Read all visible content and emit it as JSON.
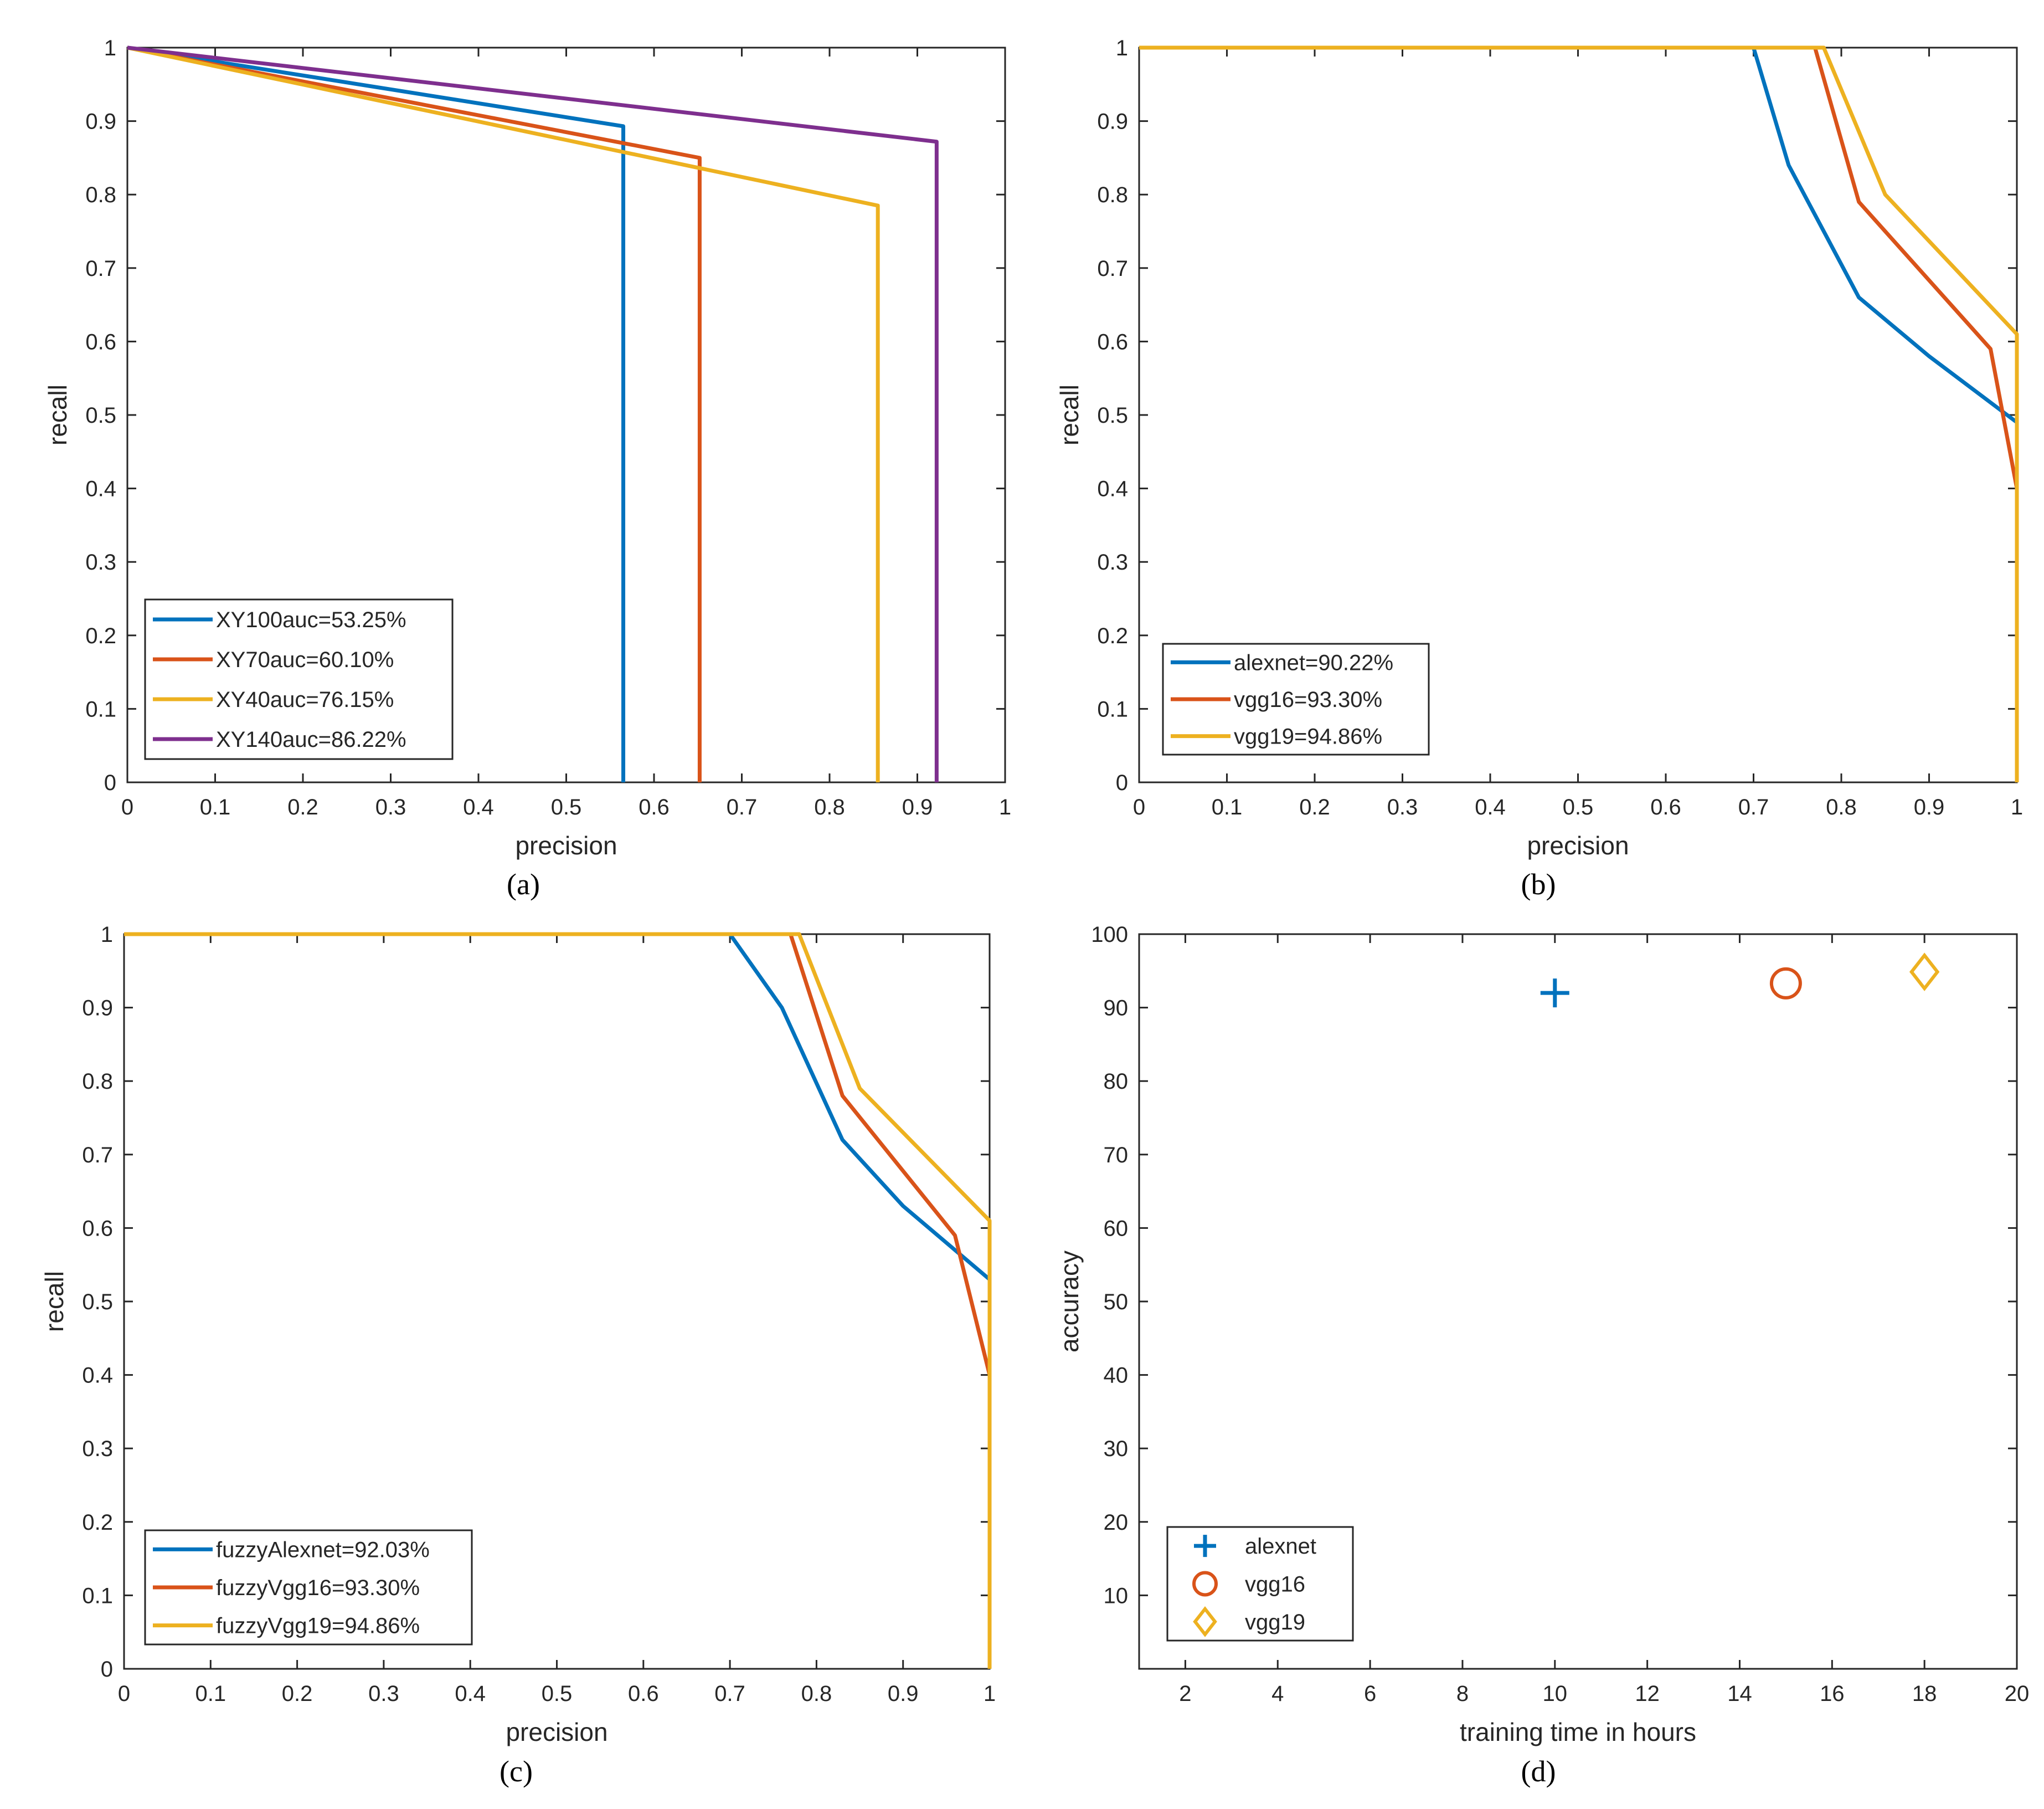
{
  "chart_data": [
    {
      "type": "line",
      "caption": "(a)",
      "xlabel": "precision",
      "ylabel": "recall",
      "xlim": [
        0,
        1
      ],
      "ylim": [
        0,
        1
      ],
      "xticks": [
        0,
        0.1,
        0.2,
        0.3,
        0.4,
        0.5,
        0.6,
        0.7,
        0.8,
        0.9,
        1
      ],
      "yticks": [
        0,
        0.1,
        0.2,
        0.3,
        0.4,
        0.5,
        0.6,
        0.7,
        0.8,
        0.9,
        1
      ],
      "xtick_labels": [
        "0",
        "0.1",
        "0.2",
        "0.3",
        "0.4",
        "0.5",
        "0.6",
        "0.7",
        "0.8",
        "0.9",
        "1"
      ],
      "ytick_labels": [
        "0",
        "0.1",
        "0.2",
        "0.3",
        "0.4",
        "0.5",
        "0.6",
        "0.7",
        "0.8",
        "0.9",
        "1"
      ],
      "legend_position": "bottom-left",
      "series": [
        {
          "name": "XY100auc=53.25%",
          "color": "#0072BD",
          "x": [
            0,
            0.565,
            0.565
          ],
          "y": [
            1,
            0.893,
            0
          ]
        },
        {
          "name": "XY70auc=60.10%",
          "color": "#D95319",
          "x": [
            0,
            0.652,
            0.652
          ],
          "y": [
            1,
            0.85,
            0
          ]
        },
        {
          "name": "XY40auc=76.15%",
          "color": "#EDB120",
          "x": [
            0,
            0.855,
            0.855
          ],
          "y": [
            1,
            0.785,
            0
          ]
        },
        {
          "name": "XY140auc=86.22%",
          "color": "#7E2F8E",
          "x": [
            0,
            0.922,
            0.922
          ],
          "y": [
            1,
            0.872,
            0
          ]
        }
      ]
    },
    {
      "type": "line",
      "caption": "(b)",
      "xlabel": "precision",
      "ylabel": "recall",
      "xlim": [
        0,
        1
      ],
      "ylim": [
        0,
        1
      ],
      "xticks": [
        0,
        0.1,
        0.2,
        0.3,
        0.4,
        0.5,
        0.6,
        0.7,
        0.8,
        0.9,
        1
      ],
      "yticks": [
        0,
        0.1,
        0.2,
        0.3,
        0.4,
        0.5,
        0.6,
        0.7,
        0.8,
        0.9,
        1
      ],
      "xtick_labels": [
        "0",
        "0.1",
        "0.2",
        "0.3",
        "0.4",
        "0.5",
        "0.6",
        "0.7",
        "0.8",
        "0.9",
        "1"
      ],
      "ytick_labels": [
        "0",
        "0.1",
        "0.2",
        "0.3",
        "0.4",
        "0.5",
        "0.6",
        "0.7",
        "0.8",
        "0.9",
        "1"
      ],
      "legend_position": "bottom-left",
      "series": [
        {
          "name": "alexnet=90.22%",
          "color": "#0072BD",
          "x": [
            0,
            0.7,
            0.74,
            0.82,
            0.9,
            1,
            1
          ],
          "y": [
            1,
            1,
            0.84,
            0.66,
            0.58,
            0.49,
            0
          ]
        },
        {
          "name": "vgg16=93.30%",
          "color": "#D95319",
          "x": [
            0,
            0.77,
            0.82,
            0.97,
            1,
            1
          ],
          "y": [
            1,
            1,
            0.79,
            0.59,
            0.4,
            0
          ]
        },
        {
          "name": "vgg19=94.86%",
          "color": "#EDB120",
          "x": [
            0,
            0.78,
            0.85,
            1,
            1
          ],
          "y": [
            1,
            1,
            0.8,
            0.61,
            0
          ]
        }
      ]
    },
    {
      "type": "line",
      "caption": "(c)",
      "xlabel": "precision",
      "ylabel": "recall",
      "xlim": [
        0,
        1
      ],
      "ylim": [
        0,
        1
      ],
      "xticks": [
        0,
        0.1,
        0.2,
        0.3,
        0.4,
        0.5,
        0.6,
        0.7,
        0.8,
        0.9,
        1
      ],
      "yticks": [
        0,
        0.1,
        0.2,
        0.3,
        0.4,
        0.5,
        0.6,
        0.7,
        0.8,
        0.9,
        1
      ],
      "xtick_labels": [
        "0",
        "0.1",
        "0.2",
        "0.3",
        "0.4",
        "0.5",
        "0.6",
        "0.7",
        "0.8",
        "0.9",
        "1"
      ],
      "ytick_labels": [
        "0",
        "0.1",
        "0.2",
        "0.3",
        "0.4",
        "0.5",
        "0.6",
        "0.7",
        "0.8",
        "0.9",
        "1"
      ],
      "legend_position": "bottom-left",
      "series": [
        {
          "name": "fuzzyAlexnet=92.03%",
          "color": "#0072BD",
          "x": [
            0,
            0.7,
            0.76,
            0.83,
            0.9,
            1,
            1
          ],
          "y": [
            1,
            1,
            0.9,
            0.72,
            0.63,
            0.53,
            0
          ]
        },
        {
          "name": "fuzzyVgg16=93.30%",
          "color": "#D95319",
          "x": [
            0,
            0.77,
            0.83,
            0.96,
            1,
            1
          ],
          "y": [
            1,
            1,
            0.78,
            0.59,
            0.4,
            0
          ]
        },
        {
          "name": "fuzzyVgg19=94.86%",
          "color": "#EDB120",
          "x": [
            0,
            0.78,
            0.85,
            1,
            1
          ],
          "y": [
            1,
            1,
            0.79,
            0.61,
            0
          ]
        }
      ]
    },
    {
      "type": "scatter",
      "caption": "(d)",
      "xlabel": "training time in hours",
      "ylabel": "accuracy",
      "xlim": [
        1,
        20
      ],
      "ylim": [
        0,
        100
      ],
      "xticks": [
        2,
        4,
        6,
        8,
        10,
        12,
        14,
        16,
        18,
        20
      ],
      "yticks": [
        10,
        20,
        30,
        40,
        50,
        60,
        70,
        80,
        90,
        100
      ],
      "xtick_labels": [
        "2",
        "4",
        "6",
        "8",
        "10",
        "12",
        "14",
        "16",
        "18",
        "20"
      ],
      "ytick_labels": [
        "10",
        "20",
        "30",
        "40",
        "50",
        "60",
        "70",
        "80",
        "90",
        "100"
      ],
      "legend_position": "bottom-left",
      "series": [
        {
          "name": "alexnet",
          "color": "#0072BD",
          "marker": "plus",
          "x": [
            10
          ],
          "y": [
            92
          ]
        },
        {
          "name": "vgg16",
          "color": "#D95319",
          "marker": "circle",
          "x": [
            15
          ],
          "y": [
            93.3
          ]
        },
        {
          "name": "vgg19",
          "color": "#EDB120",
          "marker": "diamond",
          "x": [
            18
          ],
          "y": [
            94.86
          ]
        }
      ]
    }
  ]
}
